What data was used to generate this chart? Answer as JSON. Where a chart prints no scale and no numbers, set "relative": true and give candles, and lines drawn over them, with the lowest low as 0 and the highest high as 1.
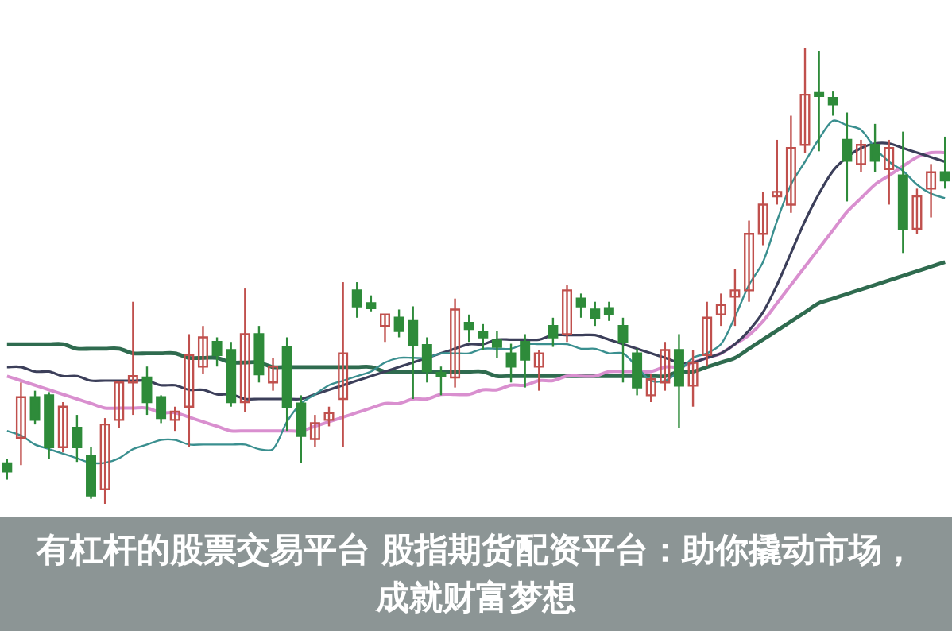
{
  "chart_data": {
    "type": "candlestick",
    "title": "有杠杆的股票交易平台 股指期货配资平台：助你撬动市场，成就财富梦想",
    "relative": true,
    "categories": [
      null,
      null,
      null,
      null,
      null,
      null,
      null,
      null,
      null,
      null,
      null,
      null,
      null,
      null,
      null,
      null,
      null,
      null,
      null,
      null,
      null,
      null,
      null,
      null,
      null,
      null,
      null,
      null,
      null,
      null,
      null,
      null,
      null,
      null,
      null,
      null,
      null,
      null,
      null,
      null,
      null,
      null,
      null,
      null,
      null,
      null,
      null,
      null,
      null,
      null,
      null,
      null,
      null,
      null,
      null,
      null,
      null,
      null,
      null,
      null,
      null,
      null,
      null,
      null,
      null,
      null,
      null,
      null
    ],
    "ohlc": [
      [
        0.089,
        0.099,
        0.053,
        0.071
      ],
      [
        0.145,
        0.266,
        0.085,
        0.234
      ],
      [
        0.234,
        0.248,
        0.174,
        0.184
      ],
      [
        0.238,
        0.245,
        0.099,
        0.124
      ],
      [
        0.124,
        0.223,
        0.113,
        0.213
      ],
      [
        0.167,
        0.195,
        0.092,
        0.124
      ],
      [
        0.106,
        0.124,
        0.011,
        0.018
      ],
      [
        0.032,
        0.188,
        0,
        0.174
      ],
      [
        0.184,
        0.27,
        0.167,
        0.266
      ],
      [
        0.266,
        0.443,
        0.195,
        0.28
      ],
      [
        0.277,
        0.301,
        0.195,
        0.223
      ],
      [
        0.234,
        0.238,
        0.177,
        0.188
      ],
      [
        0.184,
        0.213,
        0.16,
        0.202
      ],
      [
        0.213,
        0.372,
        0.124,
        0.326
      ],
      [
        0.301,
        0.39,
        0.284,
        0.365
      ],
      [
        0.355,
        0.365,
        0.301,
        0.326
      ],
      [
        0.337,
        0.355,
        0.213,
        0.223
      ],
      [
        0.223,
        0.472,
        0.202,
        0.372
      ],
      [
        0.372,
        0.39,
        0.266,
        0.284
      ],
      [
        0.266,
        0.319,
        0.248,
        0.301
      ],
      [
        0.344,
        0.365,
        0.16,
        0.213
      ],
      [
        0.22,
        0.238,
        0.089,
        0.149
      ],
      [
        0.142,
        0.195,
        0.124,
        0.177
      ],
      [
        0.184,
        0.213,
        0.17,
        0.199
      ],
      [
        0.23,
        0.486,
        0.124,
        0.33
      ],
      [
        0.468,
        0.486,
        0.408,
        0.433
      ],
      [
        0.44,
        0.457,
        0.422,
        0.429
      ],
      [
        0.39,
        0.415,
        0.355,
        0.415
      ],
      [
        0.408,
        0.426,
        0.365,
        0.379
      ],
      [
        0.401,
        0.433,
        0.23,
        0.348
      ],
      [
        0.348,
        0.365,
        0.266,
        0.291
      ],
      [
        0.287,
        0.301,
        0.238,
        0.28
      ],
      [
        0.277,
        0.45,
        0.255,
        0.426
      ],
      [
        0.397,
        0.415,
        0.355,
        0.383
      ],
      [
        0.376,
        0.394,
        0.337,
        0.365
      ],
      [
        0.358,
        0.379,
        0.319,
        0.344
      ],
      [
        0.33,
        0.351,
        0.266,
        0.301
      ],
      [
        0.355,
        0.372,
        0.255,
        0.316
      ],
      [
        0.301,
        0.337,
        0.248,
        0.33
      ],
      [
        0.39,
        0.408,
        0.344,
        0.365
      ],
      [
        0.372,
        0.479,
        0.355,
        0.468
      ],
      [
        0.45,
        0.461,
        0.408,
        0.433
      ],
      [
        0.426,
        0.443,
        0.39,
        0.408
      ],
      [
        0.429,
        0.443,
        0.401,
        0.415
      ],
      [
        0.39,
        0.408,
        0.266,
        0.355
      ],
      [
        0.33,
        0.34,
        0.238,
        0.255
      ],
      [
        0.238,
        0.284,
        0.223,
        0.273
      ],
      [
        0.266,
        0.355,
        0.248,
        0.337
      ],
      [
        0.337,
        0.372,
        0.167,
        0.259
      ],
      [
        0.259,
        0.337,
        0.213,
        0.309
      ],
      [
        0.326,
        0.443,
        0.301,
        0.408
      ],
      [
        0.415,
        0.461,
        0.39,
        0.436
      ],
      [
        0.454,
        0.514,
        0.39,
        0.468
      ],
      [
        0.468,
        0.621,
        0.443,
        0.592
      ],
      [
        0.592,
        0.684,
        0.567,
        0.656
      ],
      [
        0.674,
        0.798,
        0.656,
        0.684
      ],
      [
        0.656,
        0.851,
        0.638,
        0.78
      ],
      [
        0.787,
        1,
        0.77,
        0.897
      ],
      [
        0.901,
        0.993,
        0.773,
        0.894
      ],
      [
        0.89,
        0.904,
        0.851,
        0.876
      ],
      [
        0.798,
        0.858,
        0.663,
        0.752
      ],
      [
        0.745,
        0.798,
        0.727,
        0.787
      ],
      [
        0.787,
        0.833,
        0.727,
        0.752
      ],
      [
        0.734,
        0.798,
        0.656,
        0.78
      ],
      [
        0.72,
        0.816,
        0.55,
        0.603
      ],
      [
        0.603,
        0.691,
        0.592,
        0.674
      ],
      [
        0.691,
        0.745,
        0.628,
        0.727
      ],
      [
        0.727,
        0.805,
        0.691,
        0.709
      ]
    ],
    "series": [
      {
        "type": "line",
        "color": "#3a8f8f",
        "values": [
          0.16,
          0.15,
          0.13,
          0.12,
          0.11,
          0.1,
          0.09,
          0.09,
          0.1,
          0.12,
          0.13,
          0.14,
          0.14,
          0.13,
          0.13,
          0.13,
          0.13,
          0.13,
          0.12,
          0.12,
          0.18,
          0.22,
          0.24,
          0.26,
          0.27,
          0.28,
          0.29,
          0.31,
          0.32,
          0.32,
          0.32,
          0.33,
          0.33,
          0.33,
          0.34,
          0.34,
          0.34,
          0.35,
          0.35,
          0.35,
          0.35,
          0.34,
          0.34,
          0.33,
          0.33,
          0.3,
          0.27,
          0.27,
          0.29,
          0.32,
          0.33,
          0.35,
          0.41,
          0.48,
          0.53,
          0.62,
          0.7,
          0.75,
          0.8,
          0.84,
          0.83,
          0.82,
          0.78,
          0.75,
          0.73,
          0.7,
          0.68,
          0.67
        ]
      },
      {
        "type": "line",
        "color": "#3c3f5a",
        "values": [
          0.3,
          0.3,
          0.29,
          0.29,
          0.28,
          0.28,
          0.27,
          0.27,
          0.27,
          0.27,
          0.27,
          0.26,
          0.26,
          0.25,
          0.25,
          0.24,
          0.24,
          0.23,
          0.23,
          0.23,
          0.23,
          0.23,
          0.24,
          0.25,
          0.26,
          0.27,
          0.28,
          0.29,
          0.3,
          0.31,
          0.32,
          0.33,
          0.34,
          0.35,
          0.35,
          0.36,
          0.36,
          0.36,
          0.36,
          0.37,
          0.37,
          0.37,
          0.37,
          0.36,
          0.35,
          0.34,
          0.33,
          0.32,
          0.31,
          0.31,
          0.32,
          0.33,
          0.35,
          0.38,
          0.42,
          0.48,
          0.55,
          0.62,
          0.68,
          0.73,
          0.76,
          0.78,
          0.79,
          0.79,
          0.78,
          0.77,
          0.76,
          0.75
        ]
      },
      {
        "type": "line",
        "color": "#d98fcf",
        "values": [
          0.28,
          0.27,
          0.26,
          0.25,
          0.24,
          0.23,
          0.22,
          0.21,
          0.21,
          0.21,
          0.21,
          0.2,
          0.2,
          0.19,
          0.18,
          0.17,
          0.16,
          0.16,
          0.16,
          0.16,
          0.16,
          0.16,
          0.17,
          0.18,
          0.19,
          0.2,
          0.21,
          0.22,
          0.22,
          0.23,
          0.23,
          0.24,
          0.24,
          0.24,
          0.25,
          0.25,
          0.26,
          0.26,
          0.27,
          0.27,
          0.28,
          0.28,
          0.28,
          0.29,
          0.29,
          0.29,
          0.29,
          0.3,
          0.3,
          0.31,
          0.32,
          0.33,
          0.35,
          0.37,
          0.4,
          0.44,
          0.48,
          0.52,
          0.56,
          0.6,
          0.64,
          0.67,
          0.7,
          0.72,
          0.74,
          0.76,
          0.77,
          0.77
        ]
      },
      {
        "type": "line",
        "color": "#2f6b4f",
        "values": [
          0.35,
          0.35,
          0.35,
          0.35,
          0.35,
          0.34,
          0.34,
          0.34,
          0.34,
          0.33,
          0.33,
          0.33,
          0.33,
          0.32,
          0.32,
          0.32,
          0.31,
          0.31,
          0.31,
          0.3,
          0.3,
          0.3,
          0.3,
          0.3,
          0.3,
          0.3,
          0.3,
          0.29,
          0.29,
          0.29,
          0.29,
          0.29,
          0.29,
          0.29,
          0.29,
          0.28,
          0.28,
          0.28,
          0.28,
          0.28,
          0.28,
          0.28,
          0.28,
          0.28,
          0.28,
          0.28,
          0.28,
          0.28,
          0.29,
          0.29,
          0.3,
          0.31,
          0.32,
          0.34,
          0.36,
          0.38,
          0.4,
          0.42,
          0.44,
          0.45,
          0.46,
          0.47,
          0.48,
          0.49,
          0.5,
          0.51,
          0.52,
          0.53
        ]
      }
    ]
  }
}
